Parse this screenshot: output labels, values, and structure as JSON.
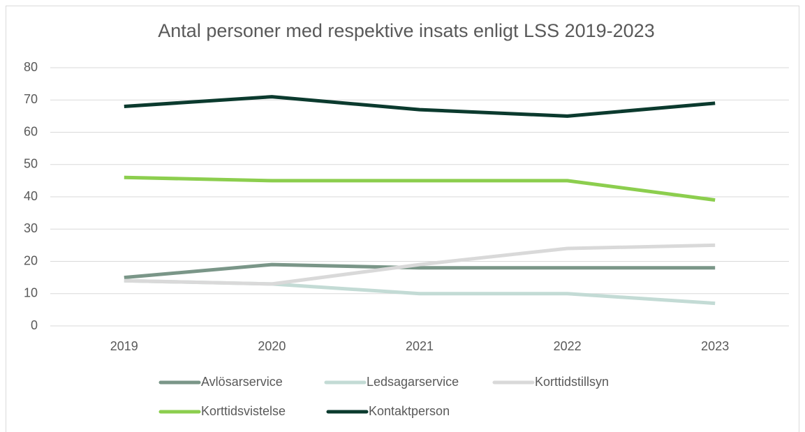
{
  "chart_data": {
    "type": "line",
    "title": "Antal personer med respektive insats enligt LSS 2019-2023",
    "categories": [
      "2019",
      "2020",
      "2021",
      "2022",
      "2023"
    ],
    "series": [
      {
        "name": "Avlösarservice",
        "color": "#7a9688",
        "values": [
          15,
          19,
          18,
          18,
          18
        ]
      },
      {
        "name": "Ledsagarservice",
        "color": "#c3dbd5",
        "values": [
          14,
          13,
          10,
          10,
          7
        ]
      },
      {
        "name": "Korttidstillsyn",
        "color": "#d9d9d9",
        "values": [
          14,
          13,
          19,
          24,
          25
        ]
      },
      {
        "name": "Korttidsvistelse",
        "color": "#8cce4e",
        "values": [
          46,
          45,
          45,
          45,
          39
        ]
      },
      {
        "name": "Kontaktperson",
        "color": "#0b3a2e",
        "values": [
          68,
          71,
          67,
          65,
          69
        ]
      }
    ],
    "ylim": [
      0,
      80
    ],
    "yticks": [
      0,
      10,
      20,
      30,
      40,
      50,
      60,
      70,
      80
    ],
    "grid": true,
    "legend": "bottom"
  }
}
